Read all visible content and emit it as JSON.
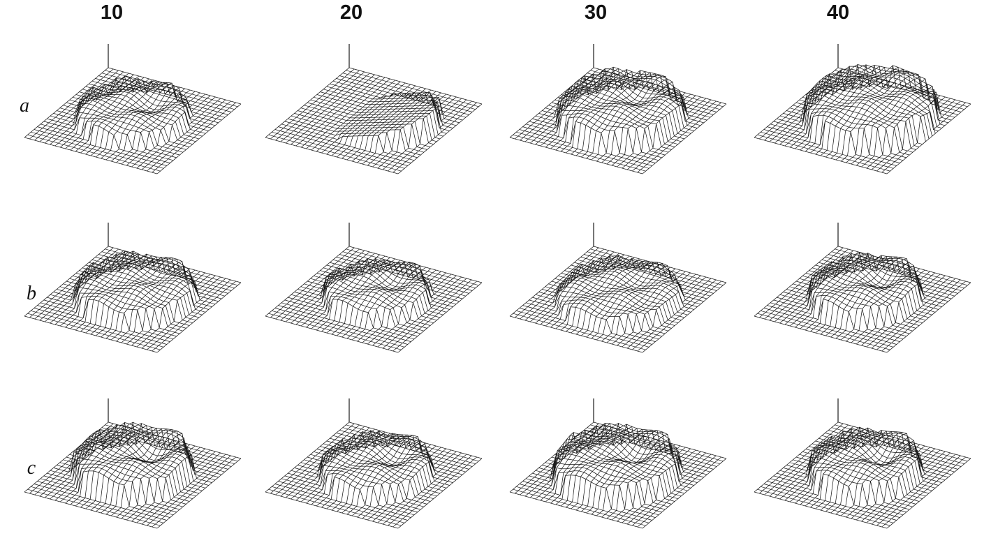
{
  "columns": [
    "10",
    "20",
    "30",
    "40"
  ],
  "rows": [
    "a",
    "b",
    "c"
  ],
  "colors": {
    "ink": "#1a1a1a",
    "paper": "#ffffff"
  }
}
